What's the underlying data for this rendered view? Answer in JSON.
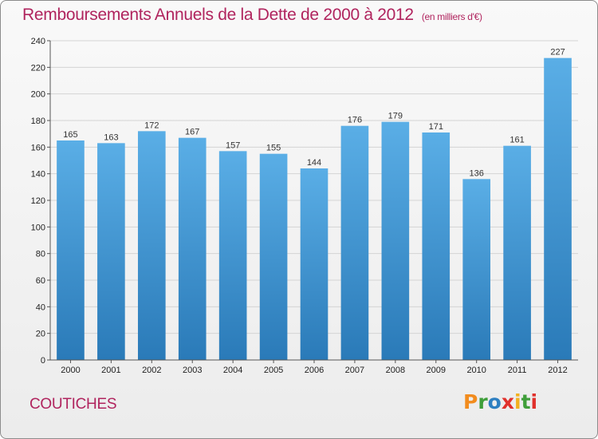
{
  "chart_data": {
    "type": "bar",
    "title": "Remboursements Annuels de la Dette de 2000 à 2012",
    "subtitle": "(en milliers d'€)",
    "categories": [
      "2000",
      "2001",
      "2002",
      "2003",
      "2004",
      "2005",
      "2006",
      "2007",
      "2008",
      "2009",
      "2010",
      "2011",
      "2012"
    ],
    "values": [
      165,
      163,
      172,
      167,
      157,
      155,
      144,
      176,
      179,
      171,
      136,
      161,
      227
    ],
    "ylim": [
      0,
      240
    ],
    "yticks": [
      0,
      20,
      40,
      60,
      80,
      100,
      120,
      140,
      160,
      180,
      200,
      220,
      240
    ],
    "grid": true,
    "bar_color_top": "#5aaee6",
    "bar_color_bottom": "#2a7ab8"
  },
  "footer": {
    "commune": "COUTICHES",
    "logo": "Proxiti",
    "logo_colors": [
      "#f28c1e",
      "#3f9e3a",
      "#2d7fc1",
      "#e0312c",
      "#f2b01e",
      "#3f9e3a",
      "#e0312c"
    ]
  }
}
